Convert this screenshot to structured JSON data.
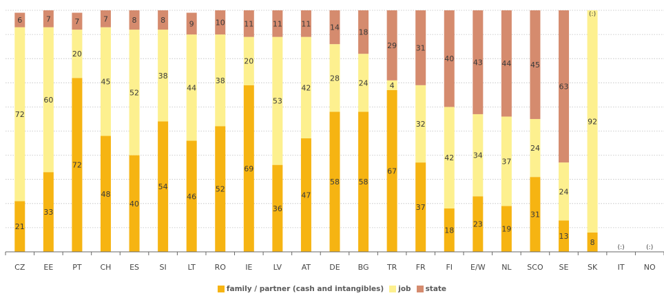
{
  "chart_data": {
    "type": "bar",
    "stacked": true,
    "categories": [
      "CZ",
      "EE",
      "PT",
      "CH",
      "ES",
      "SI",
      "LT",
      "RO",
      "IE",
      "LV",
      "AT",
      "DE",
      "BG",
      "TR",
      "FR",
      "FI",
      "E/W",
      "NL",
      "SCO",
      "SE",
      "SK",
      "IT",
      "NO"
    ],
    "series": [
      {
        "name": "family / partner (cash and intangibles)",
        "color": "#f6b412",
        "values": [
          21,
          33,
          72,
          48,
          40,
          54,
          46,
          52,
          69,
          36,
          47,
          58,
          58,
          67,
          37,
          18,
          23,
          19,
          31,
          13,
          8,
          null,
          null
        ]
      },
      {
        "name": "job",
        "color": "#fdf08f",
        "values": [
          72,
          60,
          20,
          45,
          52,
          38,
          44,
          38,
          20,
          53,
          42,
          28,
          24,
          4,
          32,
          42,
          34,
          37,
          24,
          24,
          92,
          null,
          null
        ]
      },
      {
        "name": "state",
        "color": "#d58b6e",
        "values": [
          6,
          7,
          7,
          7,
          8,
          8,
          9,
          10,
          11,
          11,
          11,
          14,
          18,
          29,
          31,
          40,
          43,
          44,
          45,
          63,
          null,
          null,
          null
        ]
      }
    ],
    "missing_markers": [
      {
        "category": "SK",
        "label": "(:)"
      },
      {
        "category": "IT",
        "label": "(:)"
      },
      {
        "category": "NO",
        "label": "(:)"
      }
    ],
    "ylim": [
      0,
      100
    ],
    "grid": true,
    "legend_position": "bottom-center",
    "colors": {
      "axis": "#666666",
      "grid": "#bdbdbd",
      "label": "#3a3a3a",
      "tick_label": "#444444"
    }
  }
}
